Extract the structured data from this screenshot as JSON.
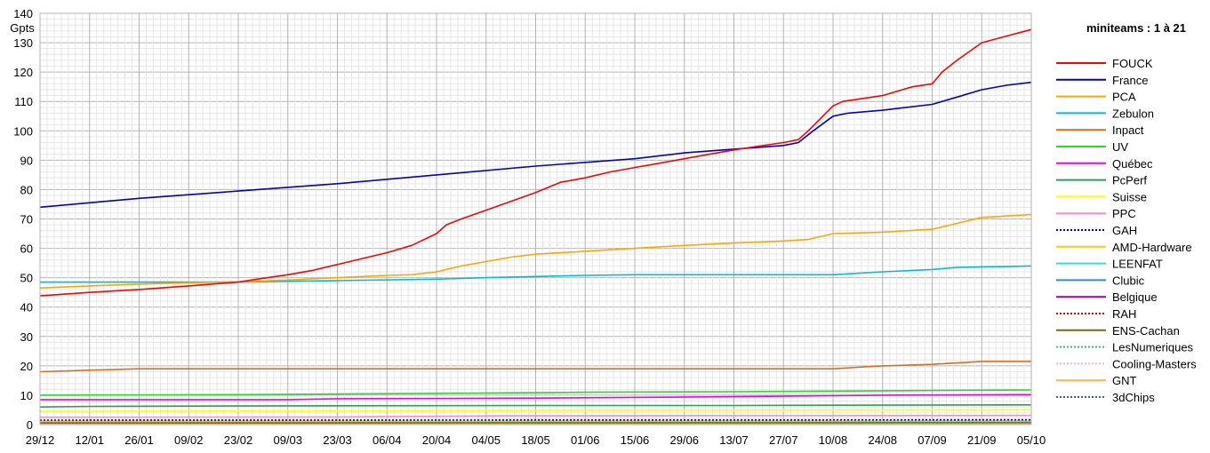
{
  "chart_data": {
    "type": "line",
    "title": "miniteams : 1 à 21",
    "ylabel": "Gpts",
    "xlabel": "",
    "ylim": [
      0,
      140
    ],
    "yticks": [
      0,
      10,
      20,
      30,
      40,
      50,
      60,
      70,
      80,
      90,
      100,
      110,
      120,
      130,
      140
    ],
    "x_ticks": [
      "29/12",
      "12/01",
      "26/01",
      "09/02",
      "23/02",
      "09/03",
      "23/03",
      "06/04",
      "20/04",
      "04/05",
      "18/05",
      "01/06",
      "15/06",
      "29/06",
      "13/07",
      "27/07",
      "10/08",
      "24/08",
      "07/09",
      "21/09",
      "05/10"
    ],
    "grid": true,
    "legend_position": "right",
    "series": [
      {
        "name": "FOUCK",
        "color": "#ff0000",
        "dash": "solid",
        "points": [
          [
            0,
            43.8
          ],
          [
            1,
            45
          ],
          [
            2,
            46
          ],
          [
            3,
            47.2
          ],
          [
            4,
            48.5
          ],
          [
            4.5,
            49.8
          ],
          [
            5,
            51
          ],
          [
            5.5,
            52.5
          ],
          [
            6,
            54.5
          ],
          [
            6.5,
            56.5
          ],
          [
            7,
            58.5
          ],
          [
            7.5,
            61
          ],
          [
            8,
            65
          ],
          [
            8.2,
            68
          ],
          [
            8.5,
            70
          ],
          [
            9,
            73
          ],
          [
            9.5,
            76
          ],
          [
            10,
            79
          ],
          [
            10.5,
            82.5
          ],
          [
            11,
            84
          ],
          [
            11.5,
            86
          ],
          [
            12,
            87.5
          ],
          [
            12.5,
            89
          ],
          [
            13,
            90.5
          ],
          [
            13.5,
            92
          ],
          [
            14,
            93.5
          ],
          [
            14.5,
            94.8
          ],
          [
            15,
            96
          ],
          [
            15.3,
            97
          ],
          [
            15.5,
            100
          ],
          [
            16,
            108.5
          ],
          [
            16.2,
            110
          ],
          [
            17,
            112
          ],
          [
            17.3,
            113.5
          ],
          [
            17.6,
            115
          ],
          [
            18,
            116
          ],
          [
            18.2,
            120
          ],
          [
            18.5,
            124
          ],
          [
            19,
            130
          ],
          [
            20,
            134.5
          ]
        ]
      },
      {
        "name": "France",
        "color": "#0000cc",
        "dash": "solid",
        "points": [
          [
            0,
            74
          ],
          [
            2,
            77
          ],
          [
            4,
            79.5
          ],
          [
            6,
            82
          ],
          [
            8,
            85
          ],
          [
            10,
            88
          ],
          [
            12,
            90.5
          ],
          [
            13,
            92.5
          ],
          [
            15,
            95
          ],
          [
            15.3,
            96
          ],
          [
            15.6,
            100
          ],
          [
            16,
            105
          ],
          [
            16.3,
            106
          ],
          [
            17,
            107
          ],
          [
            18,
            109
          ],
          [
            18.5,
            111.5
          ],
          [
            19,
            114
          ],
          [
            19.5,
            115.5
          ],
          [
            20,
            116.5
          ]
        ]
      },
      {
        "name": "PCA",
        "color": "#ffa500",
        "dash": "solid",
        "points": [
          [
            0,
            46.5
          ],
          [
            1,
            47.2
          ],
          [
            2,
            47.8
          ],
          [
            3,
            48.3
          ],
          [
            4,
            48.6
          ],
          [
            5,
            49.2
          ],
          [
            6,
            50
          ],
          [
            7,
            50.8
          ],
          [
            7.5,
            51
          ],
          [
            8,
            52
          ],
          [
            8.5,
            54
          ],
          [
            9,
            55.5
          ],
          [
            9.5,
            57
          ],
          [
            10,
            58
          ],
          [
            11,
            59
          ],
          [
            12,
            60
          ],
          [
            13,
            61
          ],
          [
            14,
            61.8
          ],
          [
            15,
            62.5
          ],
          [
            15.5,
            63
          ],
          [
            16,
            65
          ],
          [
            17,
            65.5
          ],
          [
            18,
            66.5
          ],
          [
            18.5,
            68.5
          ],
          [
            19,
            70.5
          ],
          [
            19.5,
            71
          ],
          [
            20,
            71.5
          ]
        ]
      },
      {
        "name": "Zebulon",
        "color": "#00bcd4",
        "dash": "solid",
        "points": [
          [
            0,
            48.5
          ],
          [
            4,
            48.5
          ],
          [
            6,
            49
          ],
          [
            8,
            49.5
          ],
          [
            9,
            50
          ],
          [
            10,
            50.4
          ],
          [
            11,
            50.8
          ],
          [
            12,
            51
          ],
          [
            16,
            51
          ],
          [
            17,
            52
          ],
          [
            18,
            52.8
          ],
          [
            18.5,
            53.5
          ],
          [
            19.5,
            53.8
          ],
          [
            20,
            54
          ]
        ]
      },
      {
        "name": "Inpact",
        "color": "#e06c1a",
        "dash": "solid",
        "points": [
          [
            0,
            18
          ],
          [
            1,
            18.5
          ],
          [
            2,
            19
          ],
          [
            6,
            19
          ],
          [
            10,
            19
          ],
          [
            16,
            19
          ],
          [
            16.5,
            19.5
          ],
          [
            17,
            20
          ],
          [
            18,
            20.5
          ],
          [
            18.5,
            21
          ],
          [
            19,
            21.5
          ],
          [
            20,
            21.5
          ]
        ]
      },
      {
        "name": "UV",
        "color": "#22dd22",
        "dash": "solid",
        "points": [
          [
            0,
            10
          ],
          [
            4,
            10.2
          ],
          [
            8,
            10.6
          ],
          [
            11,
            11
          ],
          [
            14,
            11.2
          ],
          [
            18,
            11.6
          ],
          [
            20,
            11.8
          ]
        ]
      },
      {
        "name": "Québec",
        "color": "#ee00ee",
        "dash": "solid",
        "points": [
          [
            0,
            8.5
          ],
          [
            5,
            8.5
          ],
          [
            6,
            8.8
          ],
          [
            10,
            9
          ],
          [
            14,
            9.5
          ],
          [
            17,
            10
          ],
          [
            20,
            10.2
          ]
        ]
      },
      {
        "name": "PcPerf",
        "color": "#2e9e5a",
        "dash": "solid",
        "points": [
          [
            0,
            6
          ],
          [
            1,
            6.2
          ],
          [
            3,
            6.3
          ],
          [
            6,
            6.4
          ],
          [
            10,
            6.5
          ],
          [
            14,
            6.5
          ],
          [
            16,
            6.6
          ],
          [
            20,
            6.7
          ]
        ]
      },
      {
        "name": "Suisse",
        "color": "#ffff00",
        "dash": "solid",
        "points": [
          [
            0,
            4.5
          ],
          [
            10,
            4.8
          ],
          [
            20,
            5
          ]
        ]
      },
      {
        "name": "PPC",
        "color": "#ff88cc",
        "dash": "solid",
        "points": [
          [
            0,
            2.5
          ],
          [
            6,
            2.6
          ],
          [
            9.5,
            3
          ],
          [
            20,
            3.1
          ]
        ]
      },
      {
        "name": "GAH",
        "color": "#0000cc",
        "dash": "dotted",
        "points": [
          [
            0,
            1.5
          ],
          [
            20,
            1.6
          ]
        ]
      },
      {
        "name": "AMD-Hardware",
        "color": "#ffcc00",
        "dash": "solid",
        "points": [
          [
            0,
            1.2
          ],
          [
            20,
            1.3
          ]
        ]
      },
      {
        "name": "LEENFAT",
        "color": "#33dddd",
        "dash": "solid",
        "points": [
          [
            0,
            1
          ],
          [
            20,
            1.1
          ]
        ]
      },
      {
        "name": "Clubic",
        "color": "#3388dd",
        "dash": "solid",
        "points": [
          [
            0,
            0.9
          ],
          [
            20,
            1
          ]
        ]
      },
      {
        "name": "Belgique",
        "color": "#9900cc",
        "dash": "solid",
        "points": [
          [
            0,
            0.8
          ],
          [
            20,
            0.9
          ]
        ]
      },
      {
        "name": "RAH",
        "color": "#ee0000",
        "dash": "dotted",
        "points": [
          [
            0,
            0.7
          ],
          [
            20,
            0.8
          ]
        ]
      },
      {
        "name": "ENS-Cachan",
        "color": "#7a6a00",
        "dash": "solid",
        "points": [
          [
            0,
            0.6
          ],
          [
            20,
            0.7
          ]
        ]
      },
      {
        "name": "LesNumeriques",
        "color": "#33bb77",
        "dash": "dotted",
        "points": [
          [
            0,
            0.5
          ],
          [
            20,
            0.6
          ]
        ]
      },
      {
        "name": "Cooling-Masters",
        "color": "#ffaadd",
        "dash": "dotted",
        "points": [
          [
            0,
            0.4
          ],
          [
            20,
            0.5
          ]
        ]
      },
      {
        "name": "GNT",
        "color": "#ffb347",
        "dash": "solid",
        "points": [
          [
            0,
            0.3
          ],
          [
            20,
            0.4
          ]
        ]
      },
      {
        "name": "3dChips",
        "color": "#336699",
        "dash": "dotted",
        "points": [
          [
            0,
            0.2
          ],
          [
            20,
            0.3
          ]
        ]
      }
    ]
  }
}
